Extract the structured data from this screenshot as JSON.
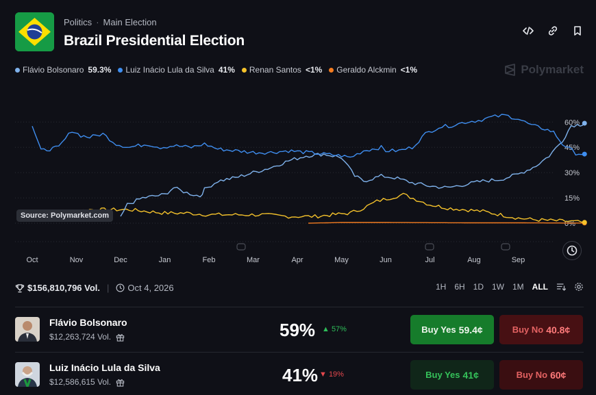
{
  "header": {
    "category": "Politics",
    "subcategory": "Main Election",
    "title": "Brazil Presidential Election",
    "icons": [
      "embed-icon",
      "link-icon",
      "bookmark-icon"
    ]
  },
  "brand": "Polymarket",
  "legend": [
    {
      "name": "Flávio Bolsonaro",
      "pct": "59.3%",
      "color": "#7fb2ec"
    },
    {
      "name": "Luiz Inácio Lula da Silva",
      "pct": "41%",
      "color": "#3f8ef0"
    },
    {
      "name": "Renan Santos",
      "pct": "<1%",
      "color": "#f5c22b"
    },
    {
      "name": "Geraldo Alckmin",
      "pct": "<1%",
      "color": "#f47c20"
    }
  ],
  "source_label": "Source: Polymarket.com",
  "chart_data": {
    "type": "line",
    "x_labels": [
      "Oct",
      "Nov",
      "Dec",
      "Jan",
      "Feb",
      "Mar",
      "Apr",
      "May",
      "Jun",
      "Jul",
      "Aug",
      "Sep"
    ],
    "y_ticks": [
      "60%",
      "45%",
      "30%",
      "15%",
      "0%"
    ],
    "ylim": [
      0,
      65
    ],
    "series": [
      {
        "name": "Luiz Inácio Lula da Silva",
        "color": "#3f8ef0",
        "values": [
          [
            0,
            58
          ],
          [
            0.2,
            43
          ],
          [
            0.6,
            45
          ],
          [
            0.9,
            55
          ],
          [
            1.1,
            52
          ],
          [
            1.3,
            51
          ],
          [
            1.6,
            53
          ],
          [
            1.9,
            47
          ],
          [
            2.2,
            45
          ],
          [
            2.6,
            47
          ],
          [
            2.9,
            45
          ],
          [
            3.2,
            46
          ],
          [
            3.6,
            45
          ],
          [
            3.9,
            47
          ],
          [
            4.2,
            44
          ],
          [
            4.6,
            43
          ],
          [
            5.0,
            42
          ],
          [
            5.4,
            42
          ],
          [
            5.8,
            43
          ],
          [
            6.2,
            42
          ],
          [
            6.6,
            41
          ],
          [
            7.0,
            40
          ],
          [
            7.2,
            39
          ],
          [
            7.5,
            43
          ],
          [
            7.9,
            45
          ],
          [
            8.0,
            43
          ],
          [
            8.3,
            43
          ],
          [
            8.6,
            45
          ],
          [
            8.9,
            53
          ],
          [
            9.2,
            57
          ],
          [
            9.5,
            58
          ],
          [
            9.8,
            60
          ],
          [
            10.1,
            61
          ],
          [
            10.4,
            63
          ],
          [
            10.7,
            64
          ],
          [
            11.0,
            62
          ],
          [
            11.3,
            58
          ],
          [
            11.6,
            56
          ],
          [
            11.8,
            54
          ],
          [
            12.0,
            47
          ],
          [
            12.3,
            41.5
          ],
          [
            12.5,
            41
          ]
        ]
      },
      {
        "name": "Flávio Bolsonaro",
        "color": "#7fb2ec",
        "values": [
          [
            2.0,
            3
          ],
          [
            2.15,
            11
          ],
          [
            2.5,
            15
          ],
          [
            3.0,
            17
          ],
          [
            3.2,
            21
          ],
          [
            3.5,
            18
          ],
          [
            3.8,
            16
          ],
          [
            3.9,
            20
          ],
          [
            4.2,
            25
          ],
          [
            4.6,
            27
          ],
          [
            5.0,
            30
          ],
          [
            5.4,
            33
          ],
          [
            5.8,
            37
          ],
          [
            6.2,
            40
          ],
          [
            6.6,
            41
          ],
          [
            7.0,
            39
          ],
          [
            7.3,
            28
          ],
          [
            7.5,
            25
          ],
          [
            7.9,
            28
          ],
          [
            8.2,
            27
          ],
          [
            8.6,
            24
          ],
          [
            9.0,
            22
          ],
          [
            9.4,
            21
          ],
          [
            9.8,
            23
          ],
          [
            10.2,
            25
          ],
          [
            10.6,
            26
          ],
          [
            11.0,
            29
          ],
          [
            11.4,
            34
          ],
          [
            11.7,
            40
          ],
          [
            12.0,
            49
          ],
          [
            12.2,
            58
          ],
          [
            12.4,
            58.5
          ],
          [
            12.5,
            59.3
          ]
        ]
      },
      {
        "name": "Renan Santos",
        "color": "#f5c22b",
        "values": [
          [
            0,
            7
          ],
          [
            1.0,
            7
          ],
          [
            1.3,
            8
          ],
          [
            1.7,
            8
          ],
          [
            2.2,
            8
          ],
          [
            2.6,
            7
          ],
          [
            3.0,
            6
          ],
          [
            3.5,
            6
          ],
          [
            4.0,
            5
          ],
          [
            4.6,
            5
          ],
          [
            5.2,
            5
          ],
          [
            5.8,
            4
          ],
          [
            6.4,
            4
          ],
          [
            6.8,
            5
          ],
          [
            7.2,
            6
          ],
          [
            7.5,
            9
          ],
          [
            7.8,
            13
          ],
          [
            8.1,
            15
          ],
          [
            8.4,
            17
          ],
          [
            8.7,
            14
          ],
          [
            9.0,
            11
          ],
          [
            9.4,
            9
          ],
          [
            9.8,
            8
          ],
          [
            10.2,
            7
          ],
          [
            10.6,
            5
          ],
          [
            11.0,
            3
          ],
          [
            11.4,
            2
          ],
          [
            11.8,
            1.5
          ],
          [
            12.2,
            1
          ],
          [
            12.5,
            0.5
          ]
        ]
      },
      {
        "name": "Geraldo Alckmin",
        "color": "#f47c20",
        "values": [
          [
            6.25,
            0
          ],
          [
            7.0,
            0.4
          ],
          [
            8.0,
            0.4
          ],
          [
            9.0,
            0.3
          ],
          [
            10.0,
            0.2
          ],
          [
            11.0,
            0.2
          ],
          [
            12.0,
            0.1
          ],
          [
            12.5,
            0.1
          ]
        ]
      }
    ]
  },
  "stats": {
    "volume": "$156,810,796 Vol.",
    "date": "Oct 4, 2026"
  },
  "ranges": [
    "1H",
    "6H",
    "1D",
    "1W",
    "1M",
    "ALL"
  ],
  "active_range": "ALL",
  "candidates": [
    {
      "name": "Flávio Bolsonaro",
      "volume": "$12,263,724 Vol.",
      "pct": "59%",
      "change": "▲ 57%",
      "change_color": "#2ebd59",
      "yes_label": "Buy Yes",
      "yes_price": "59.4¢",
      "no_label": "Buy No",
      "no_price": "40.8¢"
    },
    {
      "name": "Luiz Inácio Lula da Silva",
      "volume": "$12,586,615 Vol.",
      "pct": "41%",
      "change": "▼ 19%",
      "change_color": "#e5484d",
      "yes_label": "Buy Yes",
      "yes_price": "41¢",
      "no_label": "Buy No",
      "no_price": "60¢"
    }
  ]
}
